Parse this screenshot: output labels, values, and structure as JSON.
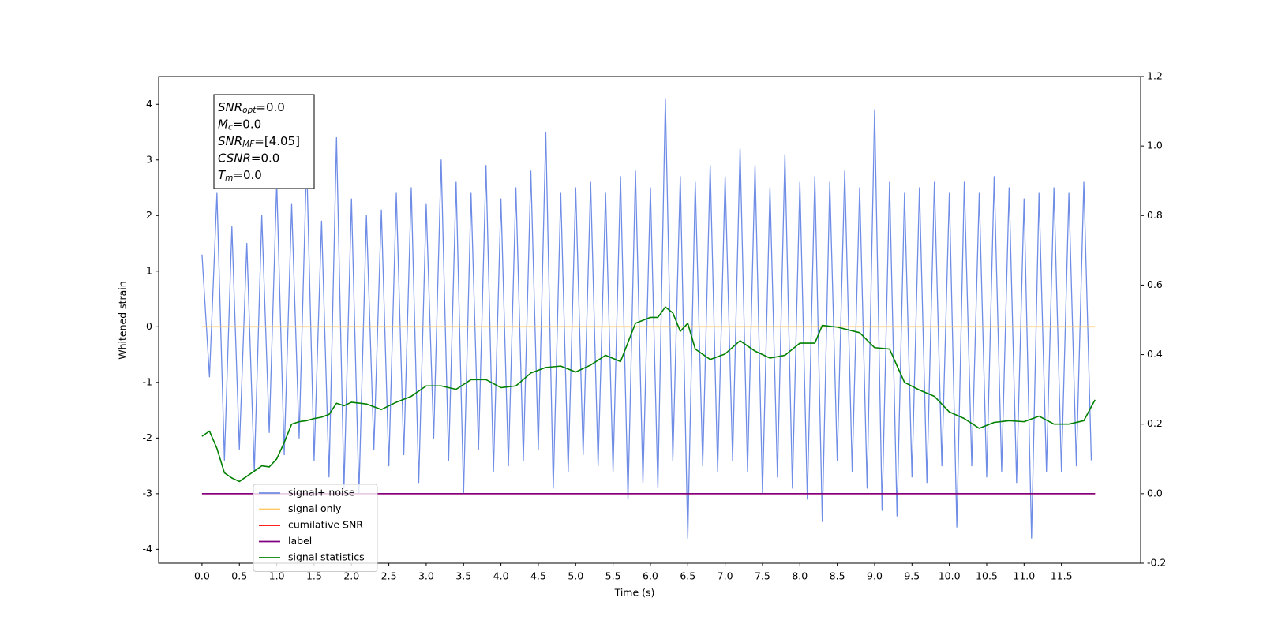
{
  "chart_data": {
    "type": "line",
    "xlabel": "Time (s)",
    "ylabel": "Whitened strain",
    "xlim": [
      -0.58,
      12.56
    ],
    "xticks": [
      {
        "value": 0,
        "label": "0.0"
      },
      0.5,
      {
        "value": 1,
        "label": "1.0"
      },
      1.5,
      {
        "value": 2,
        "label": "2.0"
      },
      2.5,
      {
        "value": 3,
        "label": "3.0"
      },
      3.5,
      {
        "value": 4,
        "label": "4.0"
      },
      4.5,
      {
        "value": 5,
        "label": "5.0"
      },
      5.5,
      {
        "value": 6,
        "label": "6.0"
      },
      6.5,
      {
        "value": 7,
        "label": "7.0"
      },
      7.5,
      {
        "value": 8,
        "label": "8.0"
      },
      8.5,
      {
        "value": 9,
        "label": "9.0"
      },
      9.5,
      {
        "value": 10,
        "label": "10.0"
      },
      10.5,
      {
        "value": 11,
        "label": "11.0"
      },
      11.5
    ],
    "ylim": [
      -4.25,
      4.5
    ],
    "yticks": [
      -4,
      -3,
      -2,
      -1,
      0,
      1,
      2,
      3,
      4
    ],
    "y2lim": [
      -0.2,
      1.2
    ],
    "y2ticks": [
      -0.2,
      {
        "value": 0,
        "label": "0.0"
      },
      0.2,
      0.4,
      0.6,
      0.8,
      {
        "value": 1,
        "label": "1.0"
      },
      1.2
    ],
    "legend": "lower left",
    "annotation": [
      {
        "var": "SNR",
        "sub": "opt",
        "text": "=0.0"
      },
      {
        "var": "M",
        "sub": "c",
        "text": "=0.0"
      },
      {
        "var": "SNR",
        "sub": "MF",
        "text": "=[4.05]"
      },
      {
        "var": "CSNR",
        "text": "=0.0"
      },
      {
        "var": "T",
        "sub": "m",
        "text": "=0.0"
      }
    ],
    "series": [
      {
        "name": "signal+ noise",
        "color": "#6f8de6",
        "axis": "y",
        "x": [
          0.0,
          0.1,
          0.2,
          0.3,
          0.4,
          0.5,
          0.6,
          0.7,
          0.8,
          0.9,
          1.0,
          1.1,
          1.2,
          1.3,
          1.4,
          1.5,
          1.6,
          1.7,
          1.8,
          1.9,
          2.0,
          2.1,
          2.2,
          2.3,
          2.4,
          2.5,
          2.6,
          2.7,
          2.8,
          2.9,
          3.0,
          3.1,
          3.2,
          3.3,
          3.4,
          3.5,
          3.6,
          3.7,
          3.8,
          3.9,
          4.0,
          4.1,
          4.2,
          4.3,
          4.4,
          4.5,
          4.6,
          4.7,
          4.8,
          4.9,
          5.0,
          5.1,
          5.2,
          5.3,
          5.4,
          5.5,
          5.6,
          5.7,
          5.8,
          5.9,
          6.0,
          6.1,
          6.2,
          6.3,
          6.4,
          6.5,
          6.6,
          6.7,
          6.8,
          6.9,
          7.0,
          7.1,
          7.2,
          7.3,
          7.4,
          7.5,
          7.6,
          7.7,
          7.8,
          7.9,
          8.0,
          8.1,
          8.2,
          8.3,
          8.4,
          8.5,
          8.6,
          8.7,
          8.8,
          8.9,
          9.0,
          9.1,
          9.2,
          9.3,
          9.4,
          9.5,
          9.6,
          9.7,
          9.8,
          9.9,
          10.0,
          10.1,
          10.2,
          10.3,
          10.4,
          10.5,
          10.6,
          10.7,
          10.8,
          10.9,
          11.0,
          11.1,
          11.2,
          11.3,
          11.4,
          11.5,
          11.6,
          11.7,
          11.8,
          11.9
        ],
        "values": [
          1.3,
          -0.9,
          2.4,
          -2.4,
          1.8,
          -2.2,
          1.5,
          -2.6,
          2.0,
          -1.9,
          2.6,
          -2.3,
          2.2,
          -2.0,
          3.0,
          -2.4,
          1.9,
          -2.7,
          3.4,
          -2.9,
          2.3,
          -3.0,
          2.0,
          -2.2,
          2.1,
          -2.5,
          2.4,
          -2.3,
          2.5,
          -2.8,
          2.2,
          -2.0,
          3.0,
          -2.4,
          2.6,
          -3.0,
          2.4,
          -2.2,
          2.9,
          -2.6,
          2.3,
          -2.5,
          2.5,
          -2.4,
          2.8,
          -2.2,
          3.5,
          -2.9,
          2.4,
          -2.6,
          2.5,
          -2.3,
          2.6,
          -2.5,
          2.4,
          -2.6,
          2.7,
          -3.1,
          2.8,
          -2.8,
          2.5,
          -2.9,
          4.1,
          -2.4,
          2.7,
          -3.8,
          2.6,
          -2.5,
          2.9,
          -2.6,
          2.7,
          -2.4,
          3.2,
          -2.6,
          2.9,
          -3.0,
          2.5,
          -2.7,
          3.1,
          -2.9,
          2.6,
          -3.1,
          2.7,
          -3.5,
          2.6,
          -2.4,
          2.8,
          -2.6,
          2.5,
          -2.9,
          3.9,
          -3.3,
          2.6,
          -3.4,
          2.4,
          -2.7,
          2.5,
          -2.8,
          2.6,
          -2.5,
          2.4,
          -3.6,
          2.6,
          -2.5,
          2.4,
          -2.7,
          2.7,
          -2.6,
          2.5,
          -2.8,
          2.3,
          -3.8,
          2.4,
          -2.6,
          2.5,
          -2.6,
          2.4,
          -2.5,
          2.6,
          -2.4
        ]
      },
      {
        "name": "signal only",
        "color": "#ffc966",
        "axis": "y",
        "x": [
          0,
          11.95
        ],
        "values": [
          0,
          0
        ]
      },
      {
        "name": "cumilative SNR",
        "color": "red",
        "axis": "y2",
        "x": [
          0,
          11.95
        ],
        "values": [
          0,
          0
        ]
      },
      {
        "name": "label",
        "color": "purple",
        "axis": "y2",
        "x": [
          0,
          11.95
        ],
        "values": [
          0,
          0
        ]
      },
      {
        "name": "signal statistics",
        "color": "green",
        "axis": "y2",
        "x": [
          0,
          0.1,
          0.2,
          0.3,
          0.4,
          0.5,
          0.6,
          0.7,
          0.8,
          0.9,
          1.0,
          1.1,
          1.2,
          1.3,
          1.4,
          1.5,
          1.6,
          1.7,
          1.8,
          1.9,
          2.0,
          2.2,
          2.4,
          2.6,
          2.8,
          3.0,
          3.2,
          3.4,
          3.6,
          3.8,
          4.0,
          4.2,
          4.4,
          4.6,
          4.8,
          5.0,
          5.2,
          5.4,
          5.6,
          5.8,
          6.0,
          6.1,
          6.2,
          6.3,
          6.4,
          6.5,
          6.6,
          6.8,
          7.0,
          7.2,
          7.4,
          7.6,
          7.8,
          8.0,
          8.2,
          8.3,
          8.5,
          8.8,
          9.0,
          9.2,
          9.4,
          9.6,
          9.8,
          10.0,
          10.2,
          10.4,
          10.6,
          10.8,
          11.0,
          11.2,
          11.4,
          11.6,
          11.8,
          11.95
        ],
        "values": [
          0.165,
          0.18,
          0.13,
          0.06,
          0.045,
          0.035,
          0.05,
          0.065,
          0.08,
          0.077,
          0.1,
          0.147,
          0.2,
          0.207,
          0.21,
          0.216,
          0.22,
          0.228,
          0.26,
          0.253,
          0.263,
          0.258,
          0.242,
          0.263,
          0.28,
          0.31,
          0.31,
          0.3,
          0.328,
          0.328,
          0.305,
          0.31,
          0.347,
          0.363,
          0.367,
          0.35,
          0.37,
          0.398,
          0.38,
          0.49,
          0.507,
          0.507,
          0.537,
          0.52,
          0.467,
          0.49,
          0.416,
          0.386,
          0.402,
          0.44,
          0.41,
          0.39,
          0.398,
          0.433,
          0.433,
          0.484,
          0.479,
          0.463,
          0.42,
          0.416,
          0.32,
          0.298,
          0.28,
          0.235,
          0.216,
          0.188,
          0.205,
          0.21,
          0.207,
          0.223,
          0.2,
          0.2,
          0.21,
          0.27
        ]
      }
    ]
  }
}
